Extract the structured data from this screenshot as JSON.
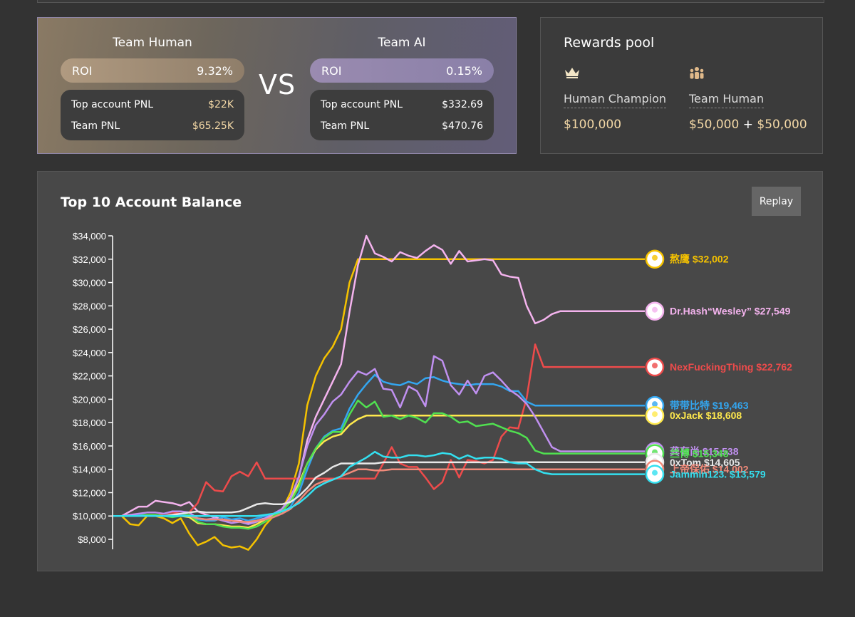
{
  "teams": {
    "human": {
      "name": "Team Human",
      "roi_label": "ROI",
      "roi": "9.32%",
      "top_pnl_label": "Top account PNL",
      "top_pnl": "$22K",
      "team_pnl_label": "Team PNL",
      "team_pnl": "$65.25K"
    },
    "vs": "VS",
    "ai": {
      "name": "Team AI",
      "roi_label": "ROI",
      "roi": "0.15%",
      "top_pnl_label": "Top account PNL",
      "top_pnl": "$332.69",
      "team_pnl_label": "Team PNL",
      "team_pnl": "$470.76"
    }
  },
  "rewards": {
    "title": "Rewards pool",
    "champion": {
      "icon": "crown-icon",
      "label": "Human Champion",
      "value": "$100,000"
    },
    "team": {
      "icon": "team-icon",
      "label": "Team Human",
      "value_a": "$50,000",
      "plus": "+",
      "value_b": "$50,000"
    }
  },
  "chart_panel": {
    "title": "Top 10 Account Balance",
    "replay_label": "Replay"
  },
  "chart_data": {
    "type": "line",
    "title": "Top 10 Account Balance",
    "ylim": [
      7000,
      35000
    ],
    "y_ticks": [
      8000,
      10000,
      12000,
      14000,
      16000,
      18000,
      20000,
      22000,
      24000,
      26000,
      28000,
      30000,
      32000,
      34000
    ],
    "y_tick_labels": [
      "$8,000",
      "$10,000",
      "$12,000",
      "$14,000",
      "$16,000",
      "$18,000",
      "$20,000",
      "$22,000",
      "$24,000",
      "$26,000",
      "$28,000",
      "$30,000",
      "$32,000",
      "$34,000"
    ],
    "x_count": 64,
    "series": [
      {
        "name": "熬鹰",
        "end_label": "$32,002",
        "color": "#f5c200",
        "values": [
          10000,
          10000,
          9300,
          9200,
          10000,
          10000,
          9800,
          9400,
          9800,
          8500,
          7500,
          7800,
          8200,
          7500,
          7300,
          7400,
          7100,
          8000,
          9200,
          10000,
          10500,
          12000,
          14500,
          19500,
          22000,
          23500,
          24500,
          26000,
          30000,
          32000,
          32000,
          32000,
          32000,
          32000,
          32000,
          32000,
          32000,
          32000,
          32000,
          32000,
          32000,
          32000,
          32000,
          32000,
          32000,
          32000,
          32000,
          32000,
          32000,
          32000,
          32000,
          32000,
          32000,
          32000,
          32000,
          32000,
          32000,
          32000,
          32000,
          32000,
          32000,
          32000,
          32002,
          32002
        ]
      },
      {
        "name": "Dr.Hash“Wesley”",
        "end_label": "$27,549",
        "color": "#f4b3ee",
        "values": [
          10000,
          10000,
          10400,
          10800,
          10800,
          11300,
          11200,
          11100,
          10900,
          11200,
          10400,
          10100,
          9900,
          9700,
          9600,
          9600,
          9400,
          9600,
          9800,
          10100,
          10600,
          11600,
          13300,
          16500,
          18500,
          20000,
          21500,
          23000,
          27500,
          31500,
          34000,
          32500,
          32200,
          31800,
          32600,
          32300,
          32100,
          32700,
          33200,
          32800,
          31600,
          32700,
          31800,
          31900,
          32000,
          31900,
          30700,
          30500,
          30400,
          28000,
          26500,
          26800,
          27300,
          27549,
          27549,
          27549,
          27549,
          27549,
          27549,
          27549,
          27549,
          27549,
          27549,
          27549
        ]
      },
      {
        "name": "NexFuckingThing",
        "end_label": "$22,762",
        "color": "#ee4b4b",
        "values": [
          10000,
          10000,
          10100,
          10000,
          10000,
          10000,
          10200,
          10300,
          10200,
          10300,
          11100,
          12900,
          12200,
          12100,
          13400,
          13800,
          13400,
          14600,
          13200,
          13200,
          13200,
          13200,
          13200,
          13200,
          13200,
          13200,
          13200,
          13200,
          13200,
          13200,
          13200,
          13200,
          14500,
          15900,
          14500,
          14200,
          14200,
          13300,
          12300,
          12900,
          14800,
          13300,
          14800,
          14700,
          14500,
          14800,
          16800,
          17600,
          17500,
          20100,
          24700,
          22762,
          22762,
          22762,
          22762,
          22762,
          22762,
          22762,
          22762,
          22762,
          22762,
          22762,
          22762,
          22762
        ]
      },
      {
        "name": "带带比特",
        "end_label": "$19,463",
        "color": "#33a6f0",
        "values": [
          10000,
          10000,
          10000,
          10100,
          10100,
          10000,
          10000,
          10000,
          10100,
          10100,
          9700,
          9600,
          9600,
          9900,
          9700,
          9800,
          9600,
          9800,
          10000,
          10100,
          10200,
          10800,
          12000,
          14000,
          15800,
          16800,
          17300,
          17500,
          19200,
          20400,
          21300,
          22100,
          21500,
          21300,
          21200,
          21500,
          21300,
          21800,
          21900,
          21600,
          21400,
          21300,
          21200,
          21300,
          21300,
          21300,
          21100,
          20700,
          20700,
          19800,
          19463,
          19463,
          19463,
          19463,
          19463,
          19463,
          19463,
          19463,
          19463,
          19463,
          19463,
          19463,
          19463,
          19463
        ]
      },
      {
        "name": "0xJack",
        "end_label": "$18,608",
        "color": "#ffe94d",
        "values": [
          10000,
          10000,
          10000,
          10000,
          10000,
          10000,
          10000,
          10000,
          10000,
          9900,
          9400,
          9300,
          9300,
          9200,
          9100,
          9100,
          9000,
          9300,
          9700,
          10100,
          10600,
          11400,
          12800,
          14500,
          15700,
          16400,
          16800,
          17000,
          17800,
          18300,
          18600,
          18608,
          18608,
          18608,
          18608,
          18608,
          18608,
          18608,
          18608,
          18608,
          18608,
          18608,
          18608,
          18608,
          18608,
          18608,
          18608,
          18608,
          18608,
          18608,
          18608,
          18608,
          18608,
          18608,
          18608,
          18608,
          18608,
          18608,
          18608,
          18608,
          18608,
          18608,
          18608,
          18608
        ]
      },
      {
        "name": "龚有尚",
        "end_label": "$15,538",
        "color": "#c090f0",
        "values": [
          10000,
          10000,
          10100,
          10200,
          10300,
          10300,
          10200,
          10400,
          10400,
          10300,
          9800,
          9700,
          9800,
          9600,
          9400,
          9500,
          9300,
          9500,
          9800,
          10200,
          10600,
          11500,
          13400,
          16000,
          17800,
          18700,
          19800,
          20400,
          21500,
          22400,
          22100,
          22600,
          20900,
          20800,
          19300,
          21100,
          20700,
          19400,
          23700,
          23300,
          21200,
          20400,
          21600,
          20500,
          22000,
          22300,
          21600,
          20800,
          20300,
          19600,
          18500,
          17200,
          15900,
          15538,
          15538,
          15538,
          15538,
          15538,
          15538,
          15538,
          15538,
          15538,
          15538,
          15538
        ]
      },
      {
        "name": "兰博",
        "end_label": "$15,348",
        "color": "#50e050",
        "values": [
          10000,
          10000,
          10000,
          10000,
          10100,
          10100,
          10000,
          9900,
          10000,
          10100,
          9500,
          9300,
          9300,
          9100,
          9000,
          9000,
          8900,
          9100,
          9500,
          10000,
          10400,
          11200,
          12500,
          14500,
          15800,
          16700,
          17200,
          17200,
          18700,
          19900,
          19300,
          19800,
          18500,
          18600,
          18300,
          18600,
          18400,
          18000,
          18800,
          18800,
          18500,
          18000,
          18100,
          17700,
          17800,
          17900,
          17600,
          17300,
          17100,
          16700,
          15600,
          15348,
          15348,
          15348,
          15348,
          15348,
          15348,
          15348,
          15348,
          15348,
          15348,
          15348,
          15348,
          15348
        ]
      },
      {
        "name": "0xTom",
        "end_label": "$14,605",
        "color": "#e8e8e8",
        "values": [
          10000,
          10000,
          10000,
          10000,
          10000,
          10000,
          10000,
          10100,
          10200,
          10300,
          10400,
          10300,
          10300,
          10300,
          10300,
          10400,
          10700,
          11000,
          11100,
          11000,
          11000,
          11200,
          11700,
          12400,
          13300,
          13700,
          14200,
          14500,
          14500,
          14500,
          14500,
          14500,
          14600,
          14600,
          14600,
          14600,
          14600,
          14600,
          14600,
          14600,
          14600,
          14600,
          14600,
          14600,
          14600,
          14600,
          14600,
          14600,
          14600,
          14605,
          14605,
          14605,
          14605,
          14605,
          14605,
          14605,
          14605,
          14605,
          14605,
          14605,
          14605,
          14605,
          14605,
          14605
        ]
      },
      {
        "name": "上帝保佑",
        "end_label": "$14,002",
        "color": "#f08a7a",
        "values": [
          10000,
          10000,
          10000,
          10000,
          10000,
          10000,
          10000,
          10000,
          10000,
          10000,
          9800,
          9700,
          9700,
          9700,
          9600,
          9500,
          9500,
          9600,
          9700,
          9900,
          10200,
          10600,
          11300,
          12100,
          12700,
          13000,
          13100,
          13400,
          13700,
          14000,
          14000,
          13900,
          13900,
          14000,
          14000,
          14000,
          14000,
          14000,
          14000,
          14000,
          14000,
          14000,
          14000,
          14000,
          14000,
          14000,
          14000,
          14000,
          14000,
          14002,
          14002,
          14002,
          14002,
          14002,
          14002,
          14002,
          14002,
          14002,
          14002,
          14002,
          14002,
          14002,
          14002,
          14002
        ]
      },
      {
        "name": "Jammin123.",
        "end_label": "$13,579",
        "color": "#33e0f0",
        "values": [
          10000,
          10000,
          10000,
          10000,
          10000,
          10000,
          10000,
          10000,
          10000,
          10000,
          10000,
          10000,
          10000,
          10000,
          10000,
          10000,
          10000,
          10000,
          10100,
          10200,
          10400,
          10700,
          11100,
          11700,
          12400,
          12800,
          13100,
          13400,
          14200,
          14600,
          15000,
          15500,
          15100,
          15000,
          15000,
          15200,
          15200,
          15100,
          15200,
          15400,
          15300,
          14900,
          15200,
          14900,
          15000,
          15000,
          14900,
          14600,
          14500,
          14500,
          14000,
          13700,
          13579,
          13579,
          13579,
          13579,
          13579,
          13579,
          13579,
          13579,
          13579,
          13579,
          13579,
          13579
        ]
      }
    ]
  }
}
